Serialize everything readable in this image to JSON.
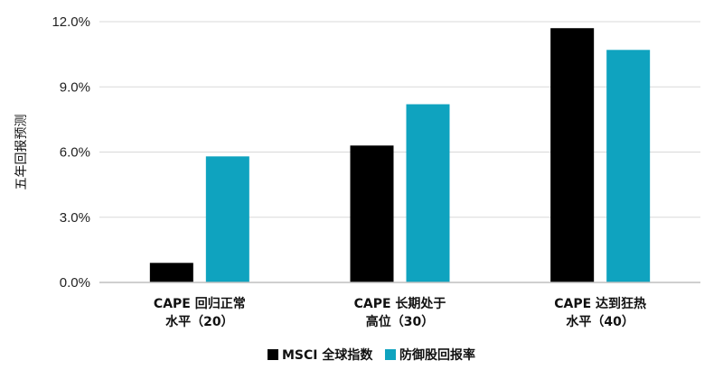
{
  "chart_data": {
    "type": "bar",
    "title": "",
    "ylabel": "五年回报预测",
    "xlabel": "",
    "categories": [
      [
        "CAPE 回归正常",
        "水平（20）"
      ],
      [
        "CAPE 长期处于",
        "高位（30）"
      ],
      [
        "CAPE 达到狂热",
        "水平（40）"
      ]
    ],
    "series": [
      {
        "name": "MSCI 全球指数",
        "color": "#000000",
        "values": [
          0.9,
          6.3,
          11.7
        ]
      },
      {
        "name": "防御股回报率",
        "color": "#0fa3bf",
        "values": [
          5.8,
          8.2,
          10.7
        ]
      }
    ],
    "ylim": [
      0,
      12
    ],
    "yticks": [
      0,
      3,
      6,
      9,
      12
    ],
    "ytick_labels": [
      "0.0%",
      "3.0%",
      "6.0%",
      "9.0%",
      "12.0%"
    ],
    "grid": true,
    "gridline_color": "#d9d9d9",
    "legend_position": "bottom-center"
  }
}
